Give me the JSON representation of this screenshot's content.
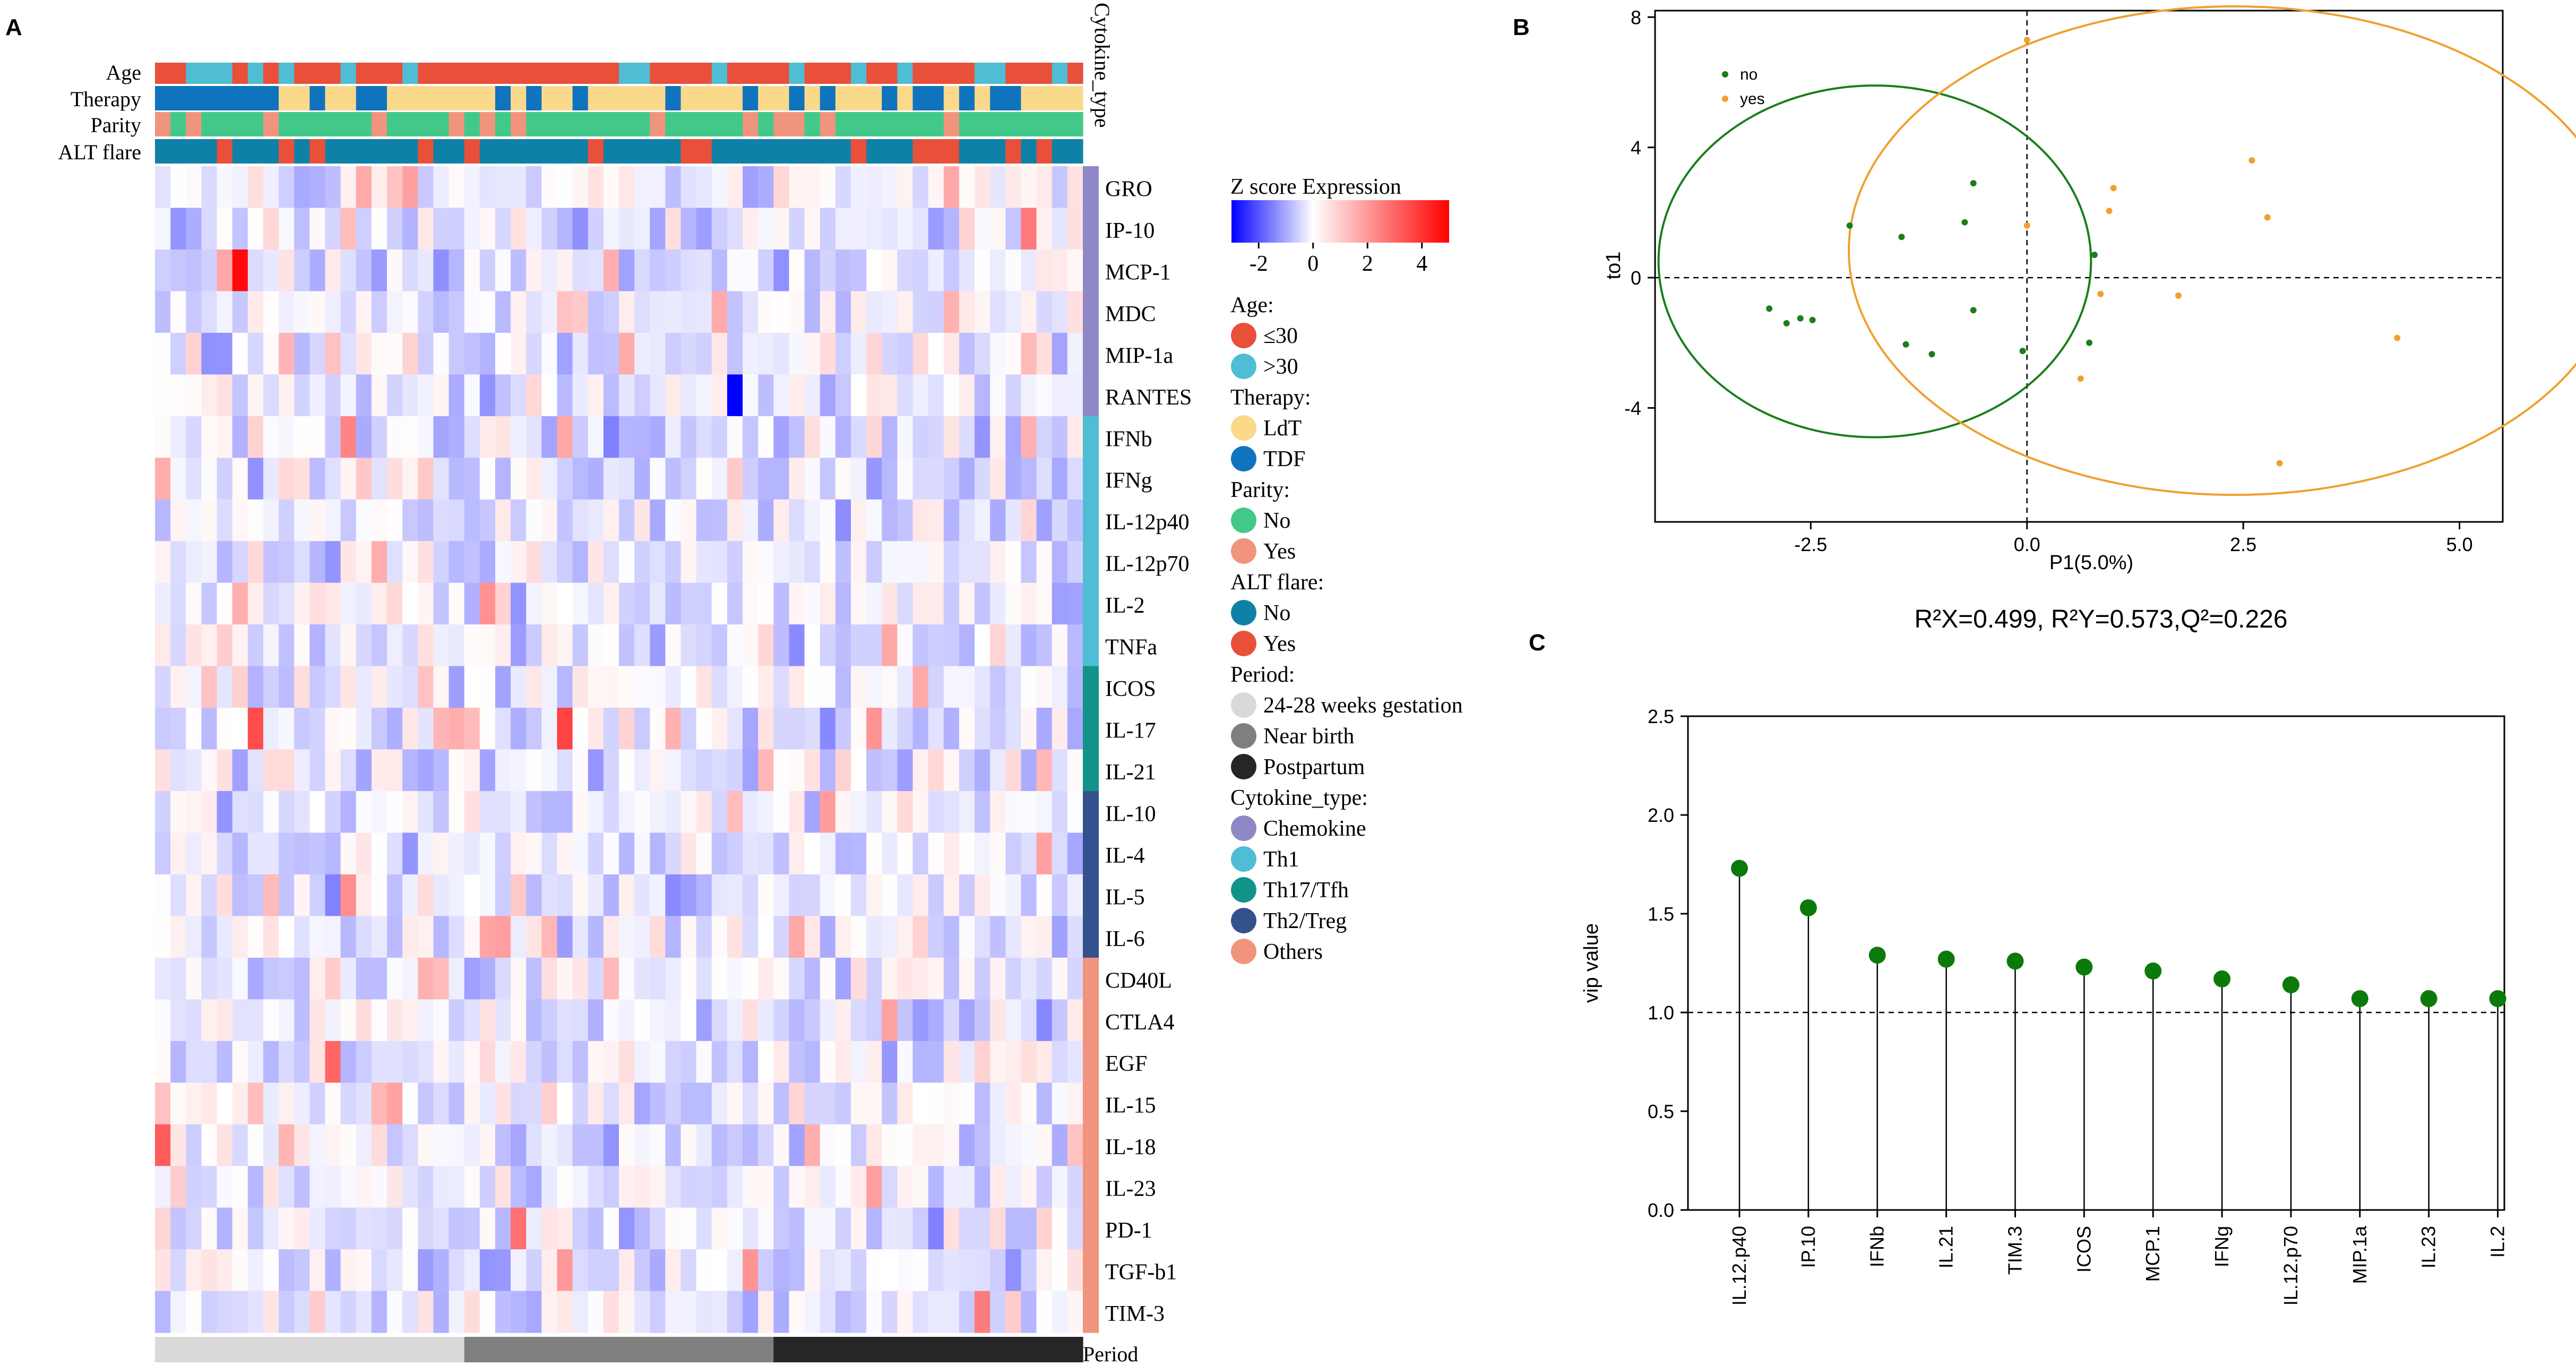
{
  "chart_data": [
    {
      "type": "heatmap",
      "panel_label": "A",
      "annotation_tracks": [
        "Age",
        "Therapy",
        "Parity",
        "ALT flare"
      ],
      "cytokine_type_label": "Cytokine_type",
      "period_label": "Period",
      "rows": [
        {
          "name": "GRO",
          "type": "Chemokine"
        },
        {
          "name": "IP-10",
          "type": "Chemokine"
        },
        {
          "name": "MCP-1",
          "type": "Chemokine"
        },
        {
          "name": "MDC",
          "type": "Chemokine"
        },
        {
          "name": "MIP-1a",
          "type": "Chemokine"
        },
        {
          "name": "RANTES",
          "type": "Chemokine"
        },
        {
          "name": "IFNb",
          "type": "Th1"
        },
        {
          "name": "IFNg",
          "type": "Th1"
        },
        {
          "name": "IL-12p40",
          "type": "Th1"
        },
        {
          "name": "IL-12p70",
          "type": "Th1"
        },
        {
          "name": "IL-2",
          "type": "Th1"
        },
        {
          "name": "TNFa",
          "type": "Th1"
        },
        {
          "name": "ICOS",
          "type": "Th17/Tfh"
        },
        {
          "name": "IL-17",
          "type": "Th17/Tfh"
        },
        {
          "name": "IL-21",
          "type": "Th17/Tfh"
        },
        {
          "name": "IL-10",
          "type": "Th2/Treg"
        },
        {
          "name": "IL-4",
          "type": "Th2/Treg"
        },
        {
          "name": "IL-5",
          "type": "Th2/Treg"
        },
        {
          "name": "IL-6",
          "type": "Th2/Treg"
        },
        {
          "name": "CD40L",
          "type": "Others"
        },
        {
          "name": "CTLA4",
          "type": "Others"
        },
        {
          "name": "EGF",
          "type": "Others"
        },
        {
          "name": "IL-15",
          "type": "Others"
        },
        {
          "name": "IL-18",
          "type": "Others"
        },
        {
          "name": "IL-23",
          "type": "Others"
        },
        {
          "name": "PD-1",
          "type": "Others"
        },
        {
          "name": "TGF-b1",
          "type": "Others"
        },
        {
          "name": "TIM-3",
          "type": "Others"
        }
      ],
      "n_samples": 60,
      "period_groups": [
        {
          "label": "24-28 weeks gestation",
          "count": 20,
          "color": "#d9d9d9"
        },
        {
          "label": "Near birth",
          "count": 20,
          "color": "#7f7f7f"
        },
        {
          "label": "Postpartum",
          "count": 20,
          "color": "#262626"
        }
      ],
      "color_scale": {
        "title": "Z score Expression",
        "min": -3,
        "max": 5,
        "ticks": [
          "-2",
          "0",
          "2",
          "4"
        ],
        "tick_values": [
          -2,
          0,
          2,
          4
        ],
        "low_color": "#0000ff",
        "mid_color": "#ffffff",
        "high_color": "#ff0000"
      },
      "legend_groups": [
        {
          "title": "Age:",
          "items": [
            {
              "label": "≤30",
              "color": "#e8503a"
            },
            {
              "label": ">30",
              "color": "#4fbdd3"
            }
          ]
        },
        {
          "title": "Therapy:",
          "items": [
            {
              "label": "LdT",
              "color": "#fbd98b"
            },
            {
              "label": "TDF",
              "color": "#0f74bd"
            }
          ]
        },
        {
          "title": "Parity:",
          "items": [
            {
              "label": "No",
              "color": "#42c98a"
            },
            {
              "label": "Yes",
              "color": "#f0947e"
            }
          ]
        },
        {
          "title": "ALT flare:",
          "items": [
            {
              "label": "No",
              "color": "#0f81a7"
            },
            {
              "label": "Yes",
              "color": "#e8503a"
            }
          ]
        },
        {
          "title": "Period:",
          "items": [
            {
              "label": "24-28 weeks gestation",
              "color": "#d9d9d9"
            },
            {
              "label": "Near birth",
              "color": "#7f7f7f"
            },
            {
              "label": "Postpartum",
              "color": "#262626"
            }
          ]
        },
        {
          "title": "Cytokine_type:",
          "items": [
            {
              "label": "Chemokine",
              "color": "#8f88c7"
            },
            {
              "label": "Th1",
              "color": "#4fbdd3"
            },
            {
              "label": "Th17/Tfh",
              "color": "#12938a"
            },
            {
              "label": "Th2/Treg",
              "color": "#33528d"
            },
            {
              "label": "Others",
              "color": "#f0947e"
            }
          ]
        }
      ],
      "notable_values": [
        {
          "row": "MCP-1",
          "sample": 5,
          "z": 4.8
        },
        {
          "row": "RANTES",
          "sample": 37,
          "z": -3.0
        },
        {
          "row": "IL-17",
          "sample": 6,
          "z": 3.5
        },
        {
          "row": "IL-17",
          "sample": 26,
          "z": 3.7
        },
        {
          "row": "IL-18",
          "sample": 0,
          "z": 3.2
        },
        {
          "row": "EGF",
          "sample": 11,
          "z": 3.0
        },
        {
          "row": "PD-1",
          "sample": 23,
          "z": 2.8
        },
        {
          "row": "IP-10",
          "sample": 56,
          "z": 2.6
        }
      ]
    },
    {
      "type": "scatter",
      "panel_label": "B",
      "xlabel": "P1(5.0%)",
      "ylabel": "to1",
      "xlim": [
        -4.3,
        5.5
      ],
      "ylim": [
        -7.5,
        8.2
      ],
      "xticks": [
        -2.5,
        0.0,
        2.5,
        5.0
      ],
      "xtick_labels": [
        "-2.5",
        "0.0",
        "2.5",
        "5.0"
      ],
      "yticks": [
        -4,
        0,
        4,
        8
      ],
      "ytick_labels": [
        "-4",
        "0",
        "4",
        "8"
      ],
      "legend": [
        {
          "label": "no",
          "color": "#1a7f1a"
        },
        {
          "label": "yes",
          "color": "#f0a030"
        }
      ],
      "series": [
        {
          "name": "no",
          "color": "#1a7f1a",
          "points": [
            [
              -2.98,
              -0.95
            ],
            [
              -2.78,
              -1.4
            ],
            [
              -2.62,
              -1.25
            ],
            [
              -2.48,
              -1.3
            ],
            [
              -2.05,
              1.6
            ],
            [
              -1.45,
              1.25
            ],
            [
              -1.4,
              -2.05
            ],
            [
              -1.1,
              -2.35
            ],
            [
              -0.72,
              1.7
            ],
            [
              -0.62,
              2.9
            ],
            [
              -0.62,
              -1.0
            ],
            [
              -0.05,
              -2.25
            ],
            [
              0.72,
              -2.0
            ],
            [
              0.78,
              0.7
            ]
          ],
          "ellipse": {
            "cx": -1.76,
            "cy": 0.5,
            "rx": 2.5,
            "ry": 5.4
          }
        },
        {
          "name": "yes",
          "color": "#f0a030",
          "points": [
            [
              0.0,
              7.3
            ],
            [
              0.0,
              1.6
            ],
            [
              0.62,
              -3.1
            ],
            [
              0.85,
              -0.5
            ],
            [
              0.95,
              2.05
            ],
            [
              1.0,
              2.75
            ],
            [
              1.75,
              -0.55
            ],
            [
              2.6,
              3.6
            ],
            [
              2.78,
              1.85
            ],
            [
              2.92,
              -5.7
            ],
            [
              4.28,
              -1.85
            ]
          ],
          "ellipse": {
            "cx": 2.4,
            "cy": 0.83,
            "rx": 4.46,
            "ry": 7.5
          }
        }
      ],
      "caption": "R²X=0.499, R²Y=0.573,Q²=0.226"
    },
    {
      "type": "lollipop",
      "panel_label": "C",
      "ylabel": "vip value",
      "ylim": [
        0.0,
        2.5
      ],
      "yticks": [
        0.0,
        0.5,
        1.0,
        1.5,
        2.0,
        2.5
      ],
      "ytick_labels": [
        "0.0",
        "0.5",
        "1.0",
        "1.5",
        "2.0",
        "2.5"
      ],
      "threshold": 1.0,
      "categories": [
        "IL.12.p40",
        "IP.10",
        "IFNb",
        "IL.21",
        "TIM.3",
        "ICOS",
        "MCP.1",
        "IFNg",
        "IL.12.p70",
        "MIP.1a",
        "IL.23",
        "IL.2"
      ],
      "values": [
        1.73,
        1.53,
        1.29,
        1.27,
        1.26,
        1.23,
        1.21,
        1.17,
        1.14,
        1.07,
        1.07,
        1.07
      ],
      "color": "#0b7a0b"
    }
  ]
}
